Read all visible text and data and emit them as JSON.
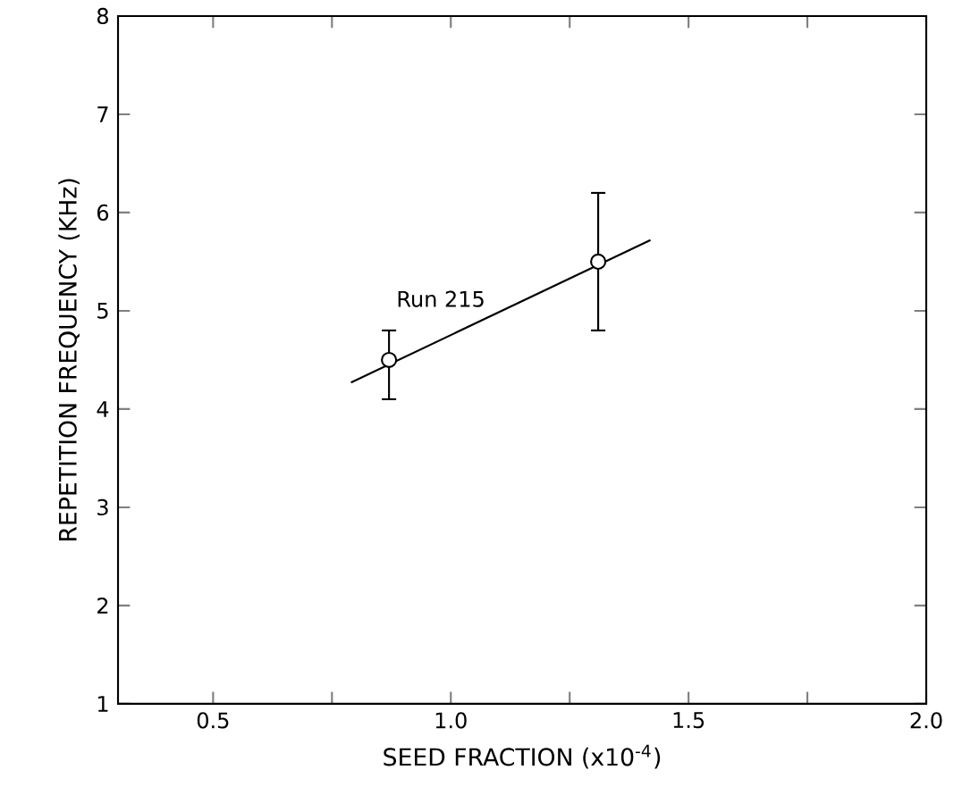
{
  "chart_data": {
    "type": "scatter",
    "xlabel": "SEED FRACTION (x10$^{-4}$)",
    "ylabel": "REPETITION FREQUENCY (KHz)",
    "xlim": [
      0.3,
      2.0
    ],
    "ylim": [
      1,
      8
    ],
    "xticks": [
      0.5,
      {
        "value": 0.75,
        "label": null
      },
      {
        "value": 1.0,
        "label": "1.0"
      },
      {
        "value": 1.25,
        "label": null
      },
      1.5,
      {
        "value": 1.75,
        "label": null
      },
      {
        "value": 2.0,
        "label": "2.0"
      }
    ],
    "yticks": [
      1,
      2,
      3,
      4,
      5,
      6,
      7,
      8
    ],
    "grid": false,
    "series": [
      {
        "marker": "circle",
        "color": "#000000",
        "x": [
          0.87,
          1.31
        ],
        "values": [
          4.5,
          5.5
        ],
        "errors": [
          [
            4.1,
            4.8
          ],
          [
            4.8,
            6.2
          ]
        ]
      },
      {
        "type": "line",
        "marker": "none",
        "name": "Run 215",
        "color": "#000000",
        "x": [
          0.79,
          1.42
        ],
        "values": [
          4.27,
          5.72
        ]
      }
    ]
  }
}
